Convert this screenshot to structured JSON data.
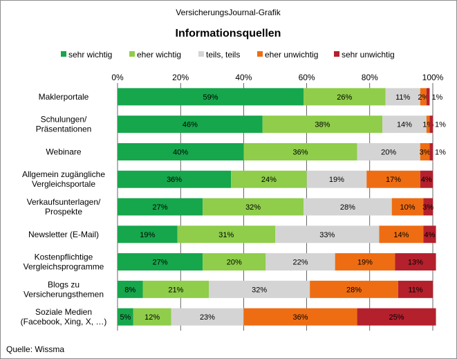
{
  "header": {
    "source_line": "VersicherungsJournal-Grafik"
  },
  "footer": {
    "source": "Quelle: Wissma"
  },
  "colors": {
    "sehr_wichtig": "#16a64c",
    "eher_wichtig": "#8fcd4a",
    "teils_teils": "#d4d4d4",
    "eher_unwichtig": "#ee6d12",
    "sehr_unwichtig": "#b5202d",
    "gridline": "#000000",
    "frame": "#8c8c8c"
  },
  "chart_data": {
    "type": "bar",
    "orientation": "horizontal",
    "stacked": true,
    "title": "Informationsquellen",
    "xlim": [
      0,
      100
    ],
    "x_ticks": [
      "0%",
      "20%",
      "40%",
      "60%",
      "80%",
      "100%"
    ],
    "grid": true,
    "legend_position": "top",
    "categories": [
      "Maklerportale",
      "Schulungen/\nPräsentationen",
      "Webinare",
      "Allgemein zugängliche\nVergleichsportale",
      "Verkaufsunterlagen/\nProspekte",
      "Newsletter (E-Mail)",
      "Kostenpflichtige\nVergleichsprogramme",
      "Blogs zu\nVersicherungsthemen",
      "Soziale Medien\n(Facebook, Xing,  X,  …)"
    ],
    "series": [
      {
        "name": "sehr wichtig",
        "values": [
          59,
          46,
          40,
          36,
          27,
          19,
          27,
          8,
          5
        ],
        "labels": [
          "59%",
          "46%",
          "40%",
          "36%",
          "27%",
          "19%",
          "27%",
          "8%",
          "5%"
        ]
      },
      {
        "name": "eher wichtig",
        "values": [
          26,
          38,
          36,
          24,
          32,
          31,
          20,
          21,
          12
        ],
        "labels": [
          "26%",
          "38%",
          "36%",
          "24%",
          "32%",
          "31%",
          "20%",
          "21%",
          "12%"
        ]
      },
      {
        "name": "teils, teils",
        "values": [
          11,
          14,
          20,
          19,
          28,
          33,
          22,
          32,
          23
        ],
        "labels": [
          "11%",
          "14%",
          "20%",
          "19%",
          "28%",
          "33%",
          "22%",
          "32%",
          "23%"
        ]
      },
      {
        "name": "eher unwichtig",
        "values": [
          2,
          1,
          3,
          17,
          10,
          14,
          19,
          28,
          36
        ],
        "labels": [
          "2%",
          "1%",
          "3%",
          "17%",
          "10%",
          "14%",
          "19%",
          "28%",
          "36%"
        ]
      },
      {
        "name": "sehr unwichtig",
        "values": [
          1,
          1,
          1,
          4,
          3,
          4,
          13,
          11,
          25
        ],
        "labels": [
          "1%",
          "1%",
          "1%",
          "4%",
          "3%",
          "4%",
          "13%",
          "11%",
          "25%"
        ]
      }
    ]
  }
}
